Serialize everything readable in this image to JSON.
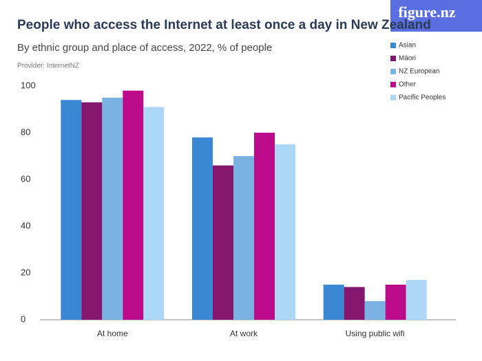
{
  "brand": "figure.nz",
  "chart_data": {
    "type": "bar",
    "title": "People who access the Internet at least once a day in New Zealand",
    "subtitle": "By ethnic group and place of access, 2022, % of people",
    "provider": "Provider: InternetNZ",
    "categories": [
      "At home",
      "At work",
      "Using public wifi"
    ],
    "series": [
      {
        "name": "Asian",
        "color": "#3a87d4",
        "values": [
          94,
          78,
          15
        ]
      },
      {
        "name": "Māori",
        "color": "#85166e",
        "values": [
          93,
          66,
          14
        ]
      },
      {
        "name": "NZ European",
        "color": "#7ab3e3",
        "values": [
          95,
          70,
          8
        ]
      },
      {
        "name": "Other",
        "color": "#bb0a8a",
        "values": [
          98,
          80,
          15
        ]
      },
      {
        "name": "Pacific Peoples",
        "color": "#acd7f7",
        "values": [
          91,
          75,
          17
        ]
      }
    ],
    "ylim": [
      0,
      100
    ],
    "yticks": [
      0,
      20,
      40,
      60,
      80,
      100
    ],
    "grid": false,
    "legend": "top-right"
  }
}
